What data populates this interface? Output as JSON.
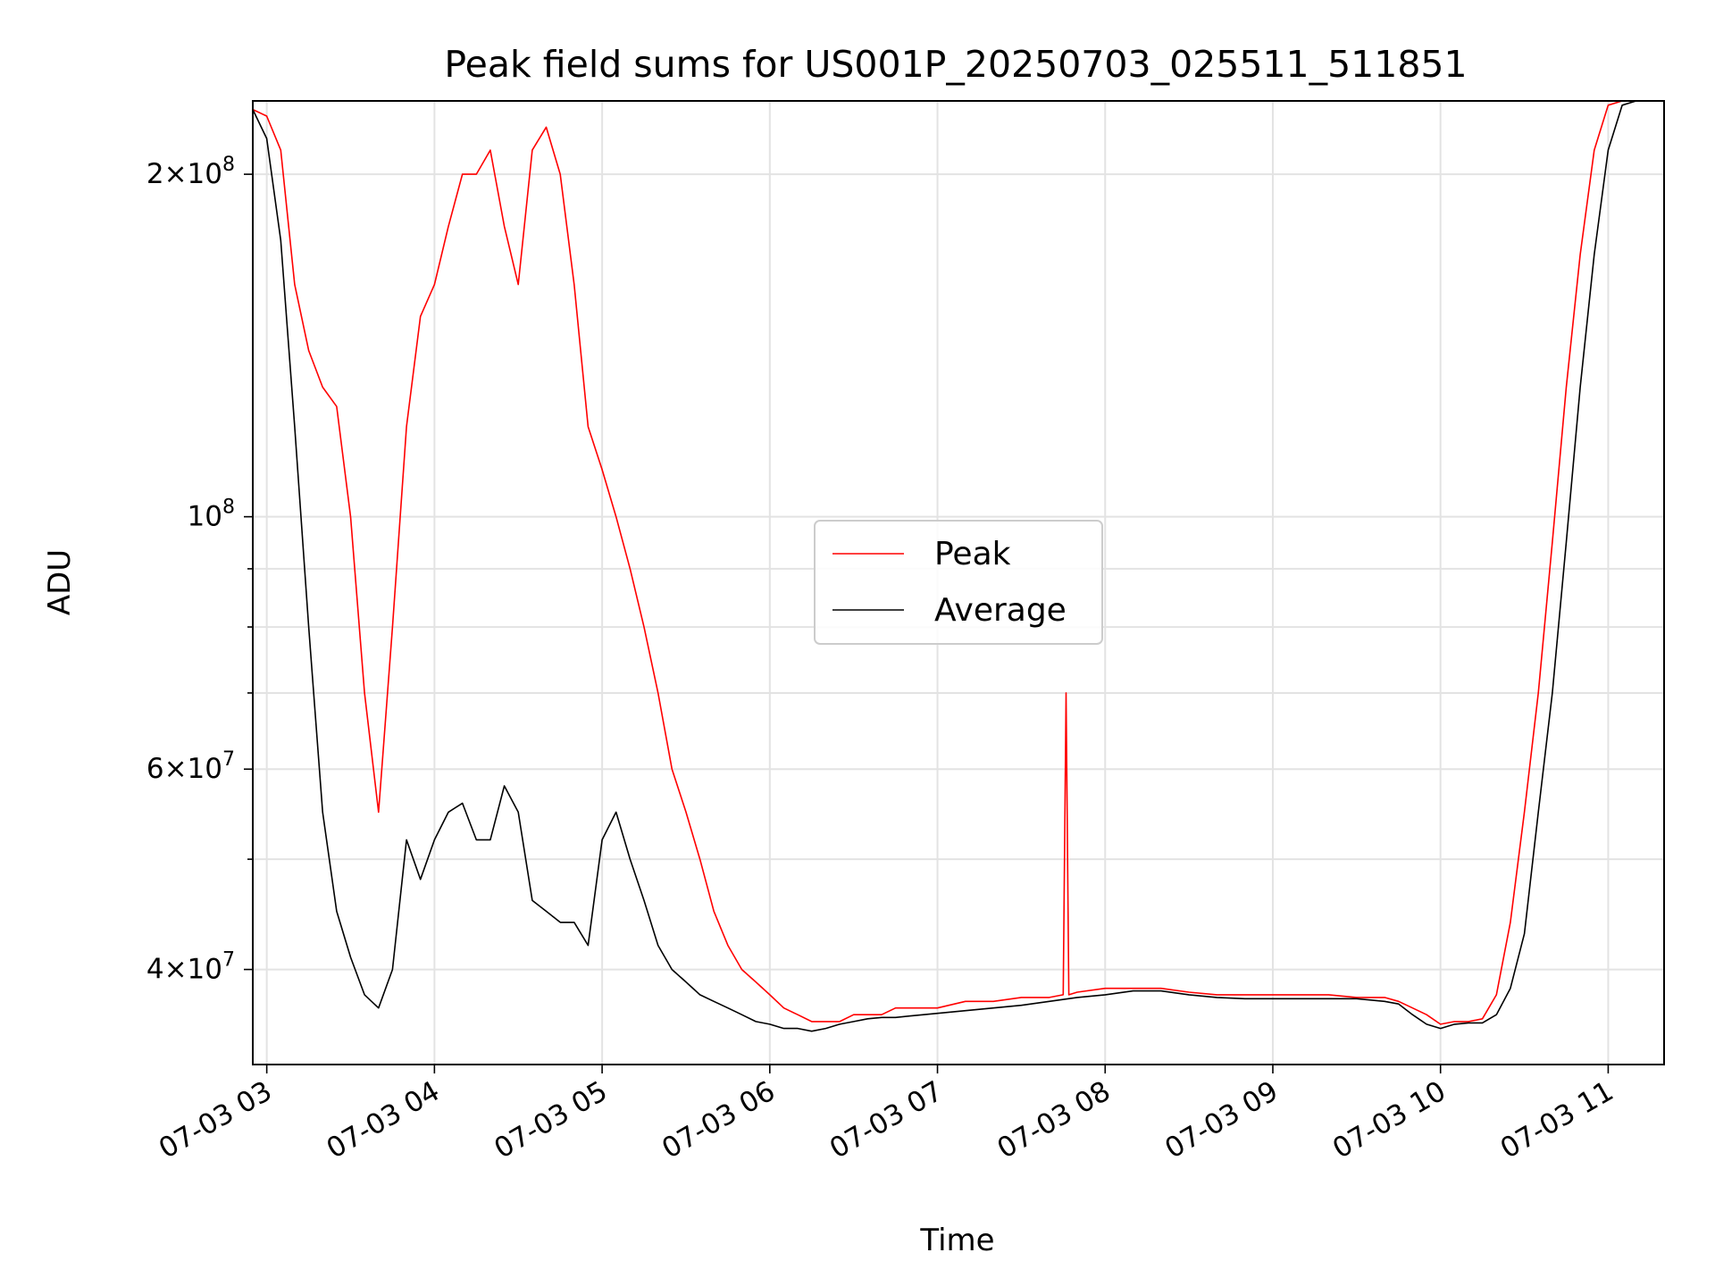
{
  "chart_data": {
    "type": "line",
    "title": "Peak field sums for US001P_20250703_025511_511851",
    "xlabel": "Time",
    "ylabel": "ADU",
    "yscale": "log",
    "ylim": [
      33000000,
      232000000
    ],
    "xlim": [
      "2025-07-03 02:55",
      "2025-07-03 11:20"
    ],
    "grid": true,
    "legend_position": "center",
    "x_ticks": [
      {
        "t": "2025-07-03 03:00",
        "label": "07-03 03"
      },
      {
        "t": "2025-07-03 04:00",
        "label": "07-03 04"
      },
      {
        "t": "2025-07-03 05:00",
        "label": "07-03 05"
      },
      {
        "t": "2025-07-03 06:00",
        "label": "07-03 06"
      },
      {
        "t": "2025-07-03 07:00",
        "label": "07-03 07"
      },
      {
        "t": "2025-07-03 08:00",
        "label": "07-03 08"
      },
      {
        "t": "2025-07-03 09:00",
        "label": "07-03 09"
      },
      {
        "t": "2025-07-03 10:00",
        "label": "07-03 10"
      },
      {
        "t": "2025-07-03 11:00",
        "label": "07-03 11"
      }
    ],
    "y_ticks": [
      {
        "value": 40000000,
        "mantissa": "4",
        "exponent": "7"
      },
      {
        "value": 60000000,
        "mantissa": "6",
        "exponent": "7"
      },
      {
        "value": 100000000,
        "mantissa": "",
        "exponent": "8"
      },
      {
        "value": 200000000,
        "mantissa": "2",
        "exponent": "8"
      }
    ],
    "series": [
      {
        "name": "Peak",
        "color": "#ff0000",
        "x": [
          "02:55",
          "03:00",
          "03:05",
          "03:10",
          "03:15",
          "03:20",
          "03:25",
          "03:30",
          "03:35",
          "03:40",
          "03:45",
          "03:50",
          "03:55",
          "04:00",
          "04:05",
          "04:10",
          "04:15",
          "04:20",
          "04:25",
          "04:30",
          "04:35",
          "04:40",
          "04:45",
          "04:50",
          "04:55",
          "05:00",
          "05:05",
          "05:10",
          "05:15",
          "05:20",
          "05:25",
          "05:30",
          "05:35",
          "05:40",
          "05:45",
          "05:50",
          "05:55",
          "06:00",
          "06:05",
          "06:10",
          "06:15",
          "06:20",
          "06:25",
          "06:30",
          "06:35",
          "06:40",
          "06:45",
          "06:50",
          "06:55",
          "07:00",
          "07:10",
          "07:20",
          "07:30",
          "07:40",
          "07:45",
          "07:46",
          "07:47",
          "07:50",
          "08:00",
          "08:10",
          "08:20",
          "08:30",
          "08:40",
          "08:50",
          "09:00",
          "09:10",
          "09:20",
          "09:30",
          "09:40",
          "09:45",
          "09:50",
          "09:55",
          "10:00",
          "10:05",
          "10:10",
          "10:15",
          "10:20",
          "10:25",
          "10:30",
          "10:35",
          "10:40",
          "10:45",
          "10:50",
          "10:55",
          "11:00",
          "11:05",
          "11:10",
          "11:15",
          "11:20"
        ],
        "y": [
          228000000,
          225000000,
          210000000,
          160000000,
          140000000,
          130000000,
          125000000,
          100000000,
          70000000,
          55000000,
          80000000,
          120000000,
          150000000,
          160000000,
          180000000,
          200000000,
          200000000,
          210000000,
          180000000,
          160000000,
          210000000,
          220000000,
          200000000,
          160000000,
          120000000,
          110000000,
          100000000,
          90000000,
          80000000,
          70000000,
          60000000,
          55000000,
          50000000,
          45000000,
          42000000,
          40000000,
          39000000,
          38000000,
          37000000,
          36500000,
          36000000,
          36000000,
          36000000,
          36500000,
          36500000,
          36500000,
          37000000,
          37000000,
          37000000,
          37000000,
          37500000,
          37500000,
          37800000,
          37800000,
          38000000,
          70000000,
          38000000,
          38200000,
          38500000,
          38500000,
          38500000,
          38200000,
          38000000,
          38000000,
          38000000,
          38000000,
          38000000,
          37800000,
          37800000,
          37500000,
          37000000,
          36500000,
          35800000,
          36000000,
          36000000,
          36200000,
          38000000,
          44000000,
          55000000,
          70000000,
          95000000,
          130000000,
          170000000,
          210000000,
          230000000,
          232000000,
          232000000,
          232000000,
          232000000
        ]
      },
      {
        "name": "Average",
        "color": "#000000",
        "x": [
          "02:55",
          "03:00",
          "03:05",
          "03:10",
          "03:15",
          "03:20",
          "03:25",
          "03:30",
          "03:35",
          "03:40",
          "03:45",
          "03:50",
          "03:55",
          "04:00",
          "04:05",
          "04:10",
          "04:15",
          "04:20",
          "04:25",
          "04:30",
          "04:35",
          "04:40",
          "04:45",
          "04:50",
          "04:55",
          "05:00",
          "05:05",
          "05:10",
          "05:15",
          "05:20",
          "05:25",
          "05:30",
          "05:35",
          "05:40",
          "05:45",
          "05:50",
          "05:55",
          "06:00",
          "06:05",
          "06:10",
          "06:15",
          "06:20",
          "06:25",
          "06:30",
          "06:35",
          "06:40",
          "06:45",
          "06:50",
          "06:55",
          "07:00",
          "07:10",
          "07:20",
          "07:30",
          "07:40",
          "07:50",
          "08:00",
          "08:10",
          "08:20",
          "08:30",
          "08:40",
          "08:50",
          "09:00",
          "09:10",
          "09:20",
          "09:30",
          "09:40",
          "09:45",
          "09:50",
          "09:55",
          "10:00",
          "10:05",
          "10:10",
          "10:15",
          "10:20",
          "10:25",
          "10:30",
          "10:35",
          "10:40",
          "10:45",
          "10:50",
          "10:55",
          "11:00",
          "11:05",
          "11:10",
          "11:15",
          "11:20"
        ],
        "y": [
          228000000,
          215000000,
          175000000,
          120000000,
          80000000,
          55000000,
          45000000,
          41000000,
          38000000,
          37000000,
          40000000,
          52000000,
          48000000,
          52000000,
          55000000,
          56000000,
          52000000,
          52000000,
          58000000,
          55000000,
          46000000,
          45000000,
          44000000,
          44000000,
          42000000,
          52000000,
          55000000,
          50000000,
          46000000,
          42000000,
          40000000,
          39000000,
          38000000,
          37500000,
          37000000,
          36500000,
          36000000,
          35800000,
          35500000,
          35500000,
          35300000,
          35500000,
          35800000,
          36000000,
          36200000,
          36300000,
          36300000,
          36400000,
          36500000,
          36600000,
          36800000,
          37000000,
          37200000,
          37500000,
          37800000,
          38000000,
          38300000,
          38300000,
          38000000,
          37800000,
          37700000,
          37700000,
          37700000,
          37700000,
          37700000,
          37500000,
          37300000,
          36500000,
          35800000,
          35500000,
          35800000,
          35900000,
          35900000,
          36500000,
          38500000,
          43000000,
          55000000,
          70000000,
          95000000,
          130000000,
          170000000,
          210000000,
          230000000,
          232000000,
          232000000,
          232000000
        ]
      }
    ]
  }
}
